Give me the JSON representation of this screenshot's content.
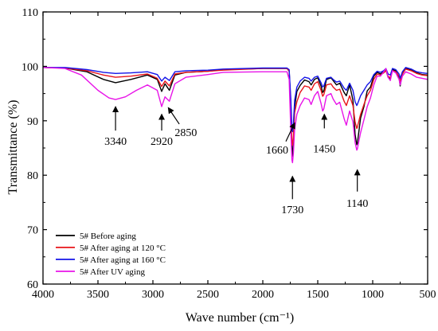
{
  "chart_data": {
    "type": "line",
    "xlabel": "Wave number (cm⁻¹)",
    "ylabel": "Transmittance (%)",
    "xlim": [
      4000,
      500
    ],
    "ylim": [
      60,
      110
    ],
    "x_reversed": true,
    "xticks": [
      "4000",
      "3500",
      "3000",
      "2500",
      "2000",
      "1500",
      "1000",
      "500"
    ],
    "yticks": [
      "60",
      "70",
      "80",
      "90",
      "100",
      "110"
    ],
    "grid": false,
    "legend": "bottom-left",
    "series": [
      {
        "name": "5#  Before aging",
        "color": "#000000",
        "points": [
          [
            4000,
            99.8
          ],
          [
            3800,
            99.7
          ],
          [
            3600,
            99.0
          ],
          [
            3450,
            97.6
          ],
          [
            3340,
            97.0
          ],
          [
            3200,
            97.6
          ],
          [
            3050,
            98.4
          ],
          [
            2960,
            97.6
          ],
          [
            2920,
            95.4
          ],
          [
            2890,
            96.8
          ],
          [
            2850,
            95.6
          ],
          [
            2800,
            98.4
          ],
          [
            2700,
            98.9
          ],
          [
            2500,
            99.1
          ],
          [
            2360,
            99.4
          ],
          [
            2000,
            99.6
          ],
          [
            1780,
            99.6
          ],
          [
            1760,
            99.2
          ],
          [
            1745,
            93.0
          ],
          [
            1735,
            84.5
          ],
          [
            1730,
            83.5
          ],
          [
            1722,
            86.0
          ],
          [
            1710,
            92.5
          ],
          [
            1690,
            95.4
          ],
          [
            1660,
            96.5
          ],
          [
            1620,
            97.5
          ],
          [
            1580,
            97.2
          ],
          [
            1560,
            96.6
          ],
          [
            1530,
            97.6
          ],
          [
            1500,
            97.9
          ],
          [
            1470,
            96.4
          ],
          [
            1455,
            95.2
          ],
          [
            1445,
            95.5
          ],
          [
            1420,
            97.6
          ],
          [
            1380,
            97.9
          ],
          [
            1360,
            97.4
          ],
          [
            1330,
            96.6
          ],
          [
            1300,
            96.9
          ],
          [
            1260,
            95.2
          ],
          [
            1240,
            94.6
          ],
          [
            1210,
            96.6
          ],
          [
            1180,
            93.8
          ],
          [
            1160,
            87.5
          ],
          [
            1145,
            85.6
          ],
          [
            1140,
            85.8
          ],
          [
            1110,
            90.5
          ],
          [
            1080,
            92.6
          ],
          [
            1050,
            95.5
          ],
          [
            1020,
            96.2
          ],
          [
            990,
            98.2
          ],
          [
            960,
            98.9
          ],
          [
            930,
            98.6
          ],
          [
            900,
            99.0
          ],
          [
            880,
            99.4
          ],
          [
            860,
            98.0
          ],
          [
            840,
            97.6
          ],
          [
            820,
            99.4
          ],
          [
            790,
            99.2
          ],
          [
            760,
            98.0
          ],
          [
            750,
            96.4
          ],
          [
            730,
            98.8
          ],
          [
            700,
            99.6
          ],
          [
            650,
            99.3
          ],
          [
            600,
            98.8
          ],
          [
            550,
            98.5
          ],
          [
            500,
            98.4
          ]
        ]
      },
      {
        "name": "5#  After aging at 120 °C",
        "color": "#e8141a",
        "points": [
          [
            4000,
            99.8
          ],
          [
            3800,
            99.7
          ],
          [
            3600,
            99.2
          ],
          [
            3450,
            98.4
          ],
          [
            3340,
            98.0
          ],
          [
            3200,
            98.2
          ],
          [
            3050,
            98.6
          ],
          [
            2960,
            97.8
          ],
          [
            2920,
            96.3
          ],
          [
            2890,
            97.3
          ],
          [
            2850,
            96.4
          ],
          [
            2800,
            98.6
          ],
          [
            2700,
            98.9
          ],
          [
            2500,
            99.1
          ],
          [
            2360,
            99.3
          ],
          [
            2000,
            99.6
          ],
          [
            1780,
            99.6
          ],
          [
            1760,
            99.1
          ],
          [
            1745,
            92.0
          ],
          [
            1735,
            86.0
          ],
          [
            1730,
            85.5
          ],
          [
            1722,
            87.0
          ],
          [
            1710,
            91.5
          ],
          [
            1690,
            93.5
          ],
          [
            1660,
            95.2
          ],
          [
            1620,
            96.4
          ],
          [
            1580,
            96.2
          ],
          [
            1560,
            95.6
          ],
          [
            1530,
            96.8
          ],
          [
            1500,
            97.2
          ],
          [
            1470,
            95.6
          ],
          [
            1455,
            94.5
          ],
          [
            1445,
            94.8
          ],
          [
            1420,
            96.6
          ],
          [
            1380,
            96.8
          ],
          [
            1360,
            96.2
          ],
          [
            1330,
            95.6
          ],
          [
            1300,
            95.8
          ],
          [
            1260,
            93.6
          ],
          [
            1240,
            92.8
          ],
          [
            1210,
            94.6
          ],
          [
            1180,
            92.8
          ],
          [
            1160,
            89.8
          ],
          [
            1145,
            88.6
          ],
          [
            1140,
            88.8
          ],
          [
            1110,
            91.2
          ],
          [
            1080,
            93.0
          ],
          [
            1050,
            94.6
          ],
          [
            1020,
            95.6
          ],
          [
            990,
            97.6
          ],
          [
            960,
            98.6
          ],
          [
            930,
            98.4
          ],
          [
            900,
            98.8
          ],
          [
            880,
            99.2
          ],
          [
            860,
            98.2
          ],
          [
            840,
            97.9
          ],
          [
            820,
            99.2
          ],
          [
            790,
            99.0
          ],
          [
            760,
            98.2
          ],
          [
            750,
            97.2
          ],
          [
            730,
            98.6
          ],
          [
            700,
            99.5
          ],
          [
            650,
            99.2
          ],
          [
            600,
            98.7
          ],
          [
            550,
            98.4
          ],
          [
            500,
            98.3
          ]
        ]
      },
      {
        "name": "5#  After aging at 160 °C",
        "color": "#1414e8",
        "points": [
          [
            4000,
            99.8
          ],
          [
            3800,
            99.8
          ],
          [
            3600,
            99.4
          ],
          [
            3450,
            98.9
          ],
          [
            3340,
            98.7
          ],
          [
            3200,
            98.8
          ],
          [
            3050,
            99.0
          ],
          [
            2960,
            98.5
          ],
          [
            2920,
            97.3
          ],
          [
            2890,
            98.0
          ],
          [
            2850,
            97.4
          ],
          [
            2800,
            99.0
          ],
          [
            2700,
            99.2
          ],
          [
            2500,
            99.3
          ],
          [
            2360,
            99.5
          ],
          [
            2000,
            99.7
          ],
          [
            1780,
            99.7
          ],
          [
            1760,
            99.4
          ],
          [
            1745,
            94.0
          ],
          [
            1735,
            88.5
          ],
          [
            1730,
            88.0
          ],
          [
            1722,
            89.5
          ],
          [
            1710,
            93.8
          ],
          [
            1690,
            96.2
          ],
          [
            1660,
            97.3
          ],
          [
            1620,
            98.0
          ],
          [
            1580,
            97.8
          ],
          [
            1560,
            97.3
          ],
          [
            1530,
            98.0
          ],
          [
            1500,
            98.2
          ],
          [
            1470,
            97.0
          ],
          [
            1455,
            96.2
          ],
          [
            1445,
            96.4
          ],
          [
            1420,
            97.8
          ],
          [
            1380,
            98.0
          ],
          [
            1360,
            97.6
          ],
          [
            1330,
            97.1
          ],
          [
            1300,
            97.3
          ],
          [
            1260,
            96.0
          ],
          [
            1240,
            95.6
          ],
          [
            1210,
            96.9
          ],
          [
            1180,
            95.6
          ],
          [
            1160,
            93.5
          ],
          [
            1145,
            92.8
          ],
          [
            1140,
            93.0
          ],
          [
            1110,
            94.6
          ],
          [
            1080,
            95.6
          ],
          [
            1050,
            96.6
          ],
          [
            1020,
            97.2
          ],
          [
            990,
            98.5
          ],
          [
            960,
            99.1
          ],
          [
            930,
            98.9
          ],
          [
            900,
            99.2
          ],
          [
            880,
            99.6
          ],
          [
            860,
            98.6
          ],
          [
            840,
            98.4
          ],
          [
            820,
            99.6
          ],
          [
            790,
            99.4
          ],
          [
            760,
            98.6
          ],
          [
            750,
            97.8
          ],
          [
            730,
            99.0
          ],
          [
            700,
            99.8
          ],
          [
            650,
            99.5
          ],
          [
            600,
            99.0
          ],
          [
            550,
            98.8
          ],
          [
            500,
            98.7
          ]
        ]
      },
      {
        "name": "5#  After UV aging",
        "color": "#e814e8",
        "points": [
          [
            4000,
            99.8
          ],
          [
            3800,
            99.6
          ],
          [
            3650,
            98.4
          ],
          [
            3500,
            95.6
          ],
          [
            3400,
            94.2
          ],
          [
            3340,
            93.9
          ],
          [
            3250,
            94.4
          ],
          [
            3150,
            95.6
          ],
          [
            3050,
            96.6
          ],
          [
            2960,
            95.6
          ],
          [
            2920,
            92.6
          ],
          [
            2890,
            94.4
          ],
          [
            2850,
            93.6
          ],
          [
            2800,
            96.8
          ],
          [
            2700,
            98.0
          ],
          [
            2500,
            98.5
          ],
          [
            2360,
            98.9
          ],
          [
            2000,
            99.0
          ],
          [
            1780,
            99.0
          ],
          [
            1760,
            97.6
          ],
          [
            1745,
            88.0
          ],
          [
            1735,
            82.8
          ],
          [
            1730,
            82.3
          ],
          [
            1722,
            84.0
          ],
          [
            1710,
            88.5
          ],
          [
            1690,
            91.2
          ],
          [
            1660,
            92.8
          ],
          [
            1620,
            94.2
          ],
          [
            1580,
            93.9
          ],
          [
            1560,
            93.0
          ],
          [
            1530,
            94.6
          ],
          [
            1500,
            95.4
          ],
          [
            1470,
            93.2
          ],
          [
            1455,
            91.8
          ],
          [
            1445,
            92.2
          ],
          [
            1420,
            94.6
          ],
          [
            1380,
            95.0
          ],
          [
            1360,
            94.0
          ],
          [
            1330,
            93.0
          ],
          [
            1300,
            93.4
          ],
          [
            1260,
            90.4
          ],
          [
            1240,
            89.2
          ],
          [
            1210,
            91.8
          ],
          [
            1180,
            89.8
          ],
          [
            1160,
            86.0
          ],
          [
            1145,
            84.6
          ],
          [
            1140,
            84.8
          ],
          [
            1110,
            87.8
          ],
          [
            1080,
            90.2
          ],
          [
            1050,
            92.6
          ],
          [
            1020,
            94.2
          ],
          [
            990,
            96.6
          ],
          [
            960,
            98.2
          ],
          [
            930,
            98.2
          ],
          [
            900,
            99.0
          ],
          [
            880,
            99.6
          ],
          [
            860,
            98.0
          ],
          [
            840,
            97.4
          ],
          [
            820,
            99.2
          ],
          [
            790,
            98.8
          ],
          [
            760,
            97.6
          ],
          [
            750,
            96.6
          ],
          [
            730,
            98.2
          ],
          [
            700,
            99.0
          ],
          [
            650,
            98.6
          ],
          [
            600,
            98.0
          ],
          [
            550,
            97.8
          ],
          [
            500,
            97.6
          ]
        ]
      }
    ],
    "annotations": [
      {
        "label": "3340",
        "x": 3340,
        "arrow_from_y": 88.2,
        "arrow_to_y": 92.6,
        "label_y": 85.6
      },
      {
        "label": "2920",
        "x": 2920,
        "arrow_from_y": 88.2,
        "arrow_to_y": 91.2,
        "label_y": 85.6
      },
      {
        "label": "2850",
        "x": 2700,
        "arrow_from_x": 2760,
        "arrow_from_y": 89.4,
        "arrow_to_x": 2860,
        "arrow_to_y": 92.4,
        "label_y": 87.2
      },
      {
        "label": "1660",
        "x": 1870,
        "arrow_from_x": 1790,
        "arrow_from_y": 86.2,
        "arrow_to_x": 1710,
        "arrow_to_y": 89.6,
        "label_y": 84.0
      },
      {
        "label": "1450",
        "x": 1440,
        "arrow_from_y": 88.6,
        "arrow_to_y": 91.2,
        "label_y": 84.2
      },
      {
        "label": "1730",
        "x": 1730,
        "arrow_from_y": 75.6,
        "arrow_to_y": 79.8,
        "label_y": 73.0
      },
      {
        "label": "1140",
        "x": 1140,
        "arrow_from_y": 77.0,
        "arrow_to_y": 81.0,
        "label_y": 74.2
      }
    ]
  }
}
